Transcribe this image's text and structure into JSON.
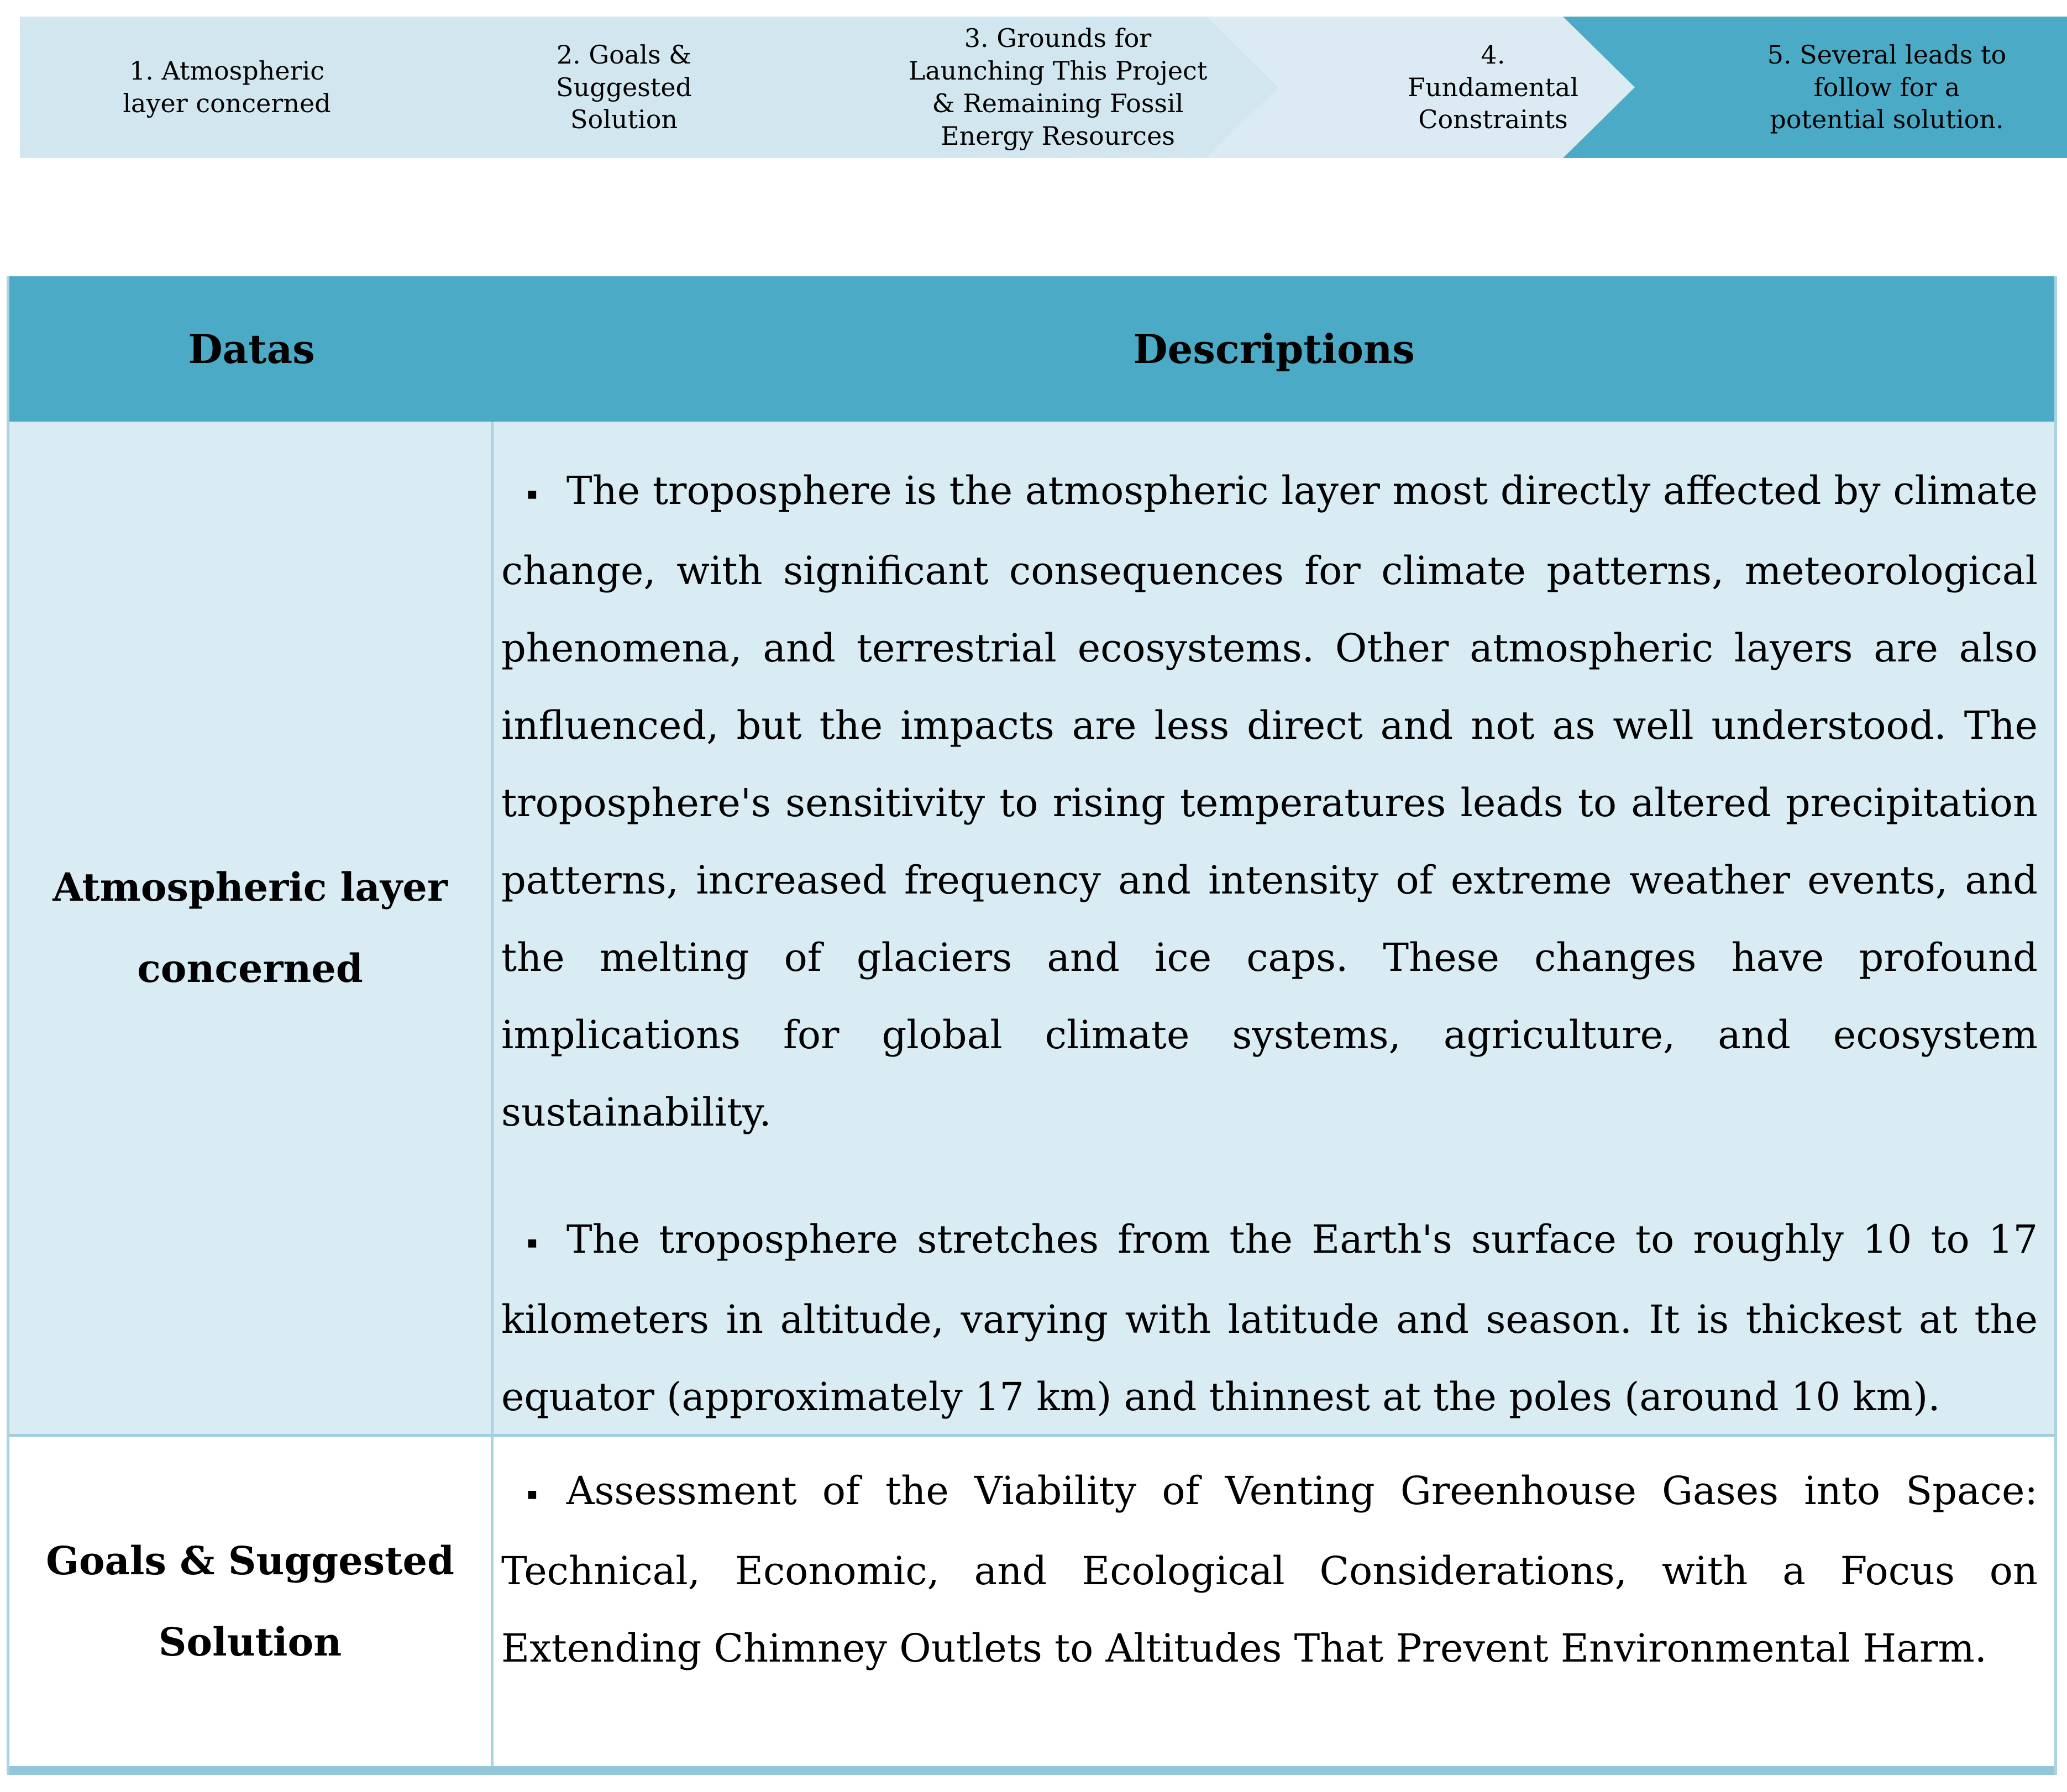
{
  "process_flow": {
    "steps": [
      {
        "label": "1. Atmospheric\nlayer concerned",
        "fill": "#d2e6ef"
      },
      {
        "label": "2. Goals &\nSuggested\nSolution",
        "fill": "#d2e6ef"
      },
      {
        "label": "3. Grounds for\nLaunching This Project\n& Remaining Fossil\nEnergy Resources",
        "fill": "#d2e6ef"
      },
      {
        "label": "4.\nFundamental\nConstraints",
        "fill": "#dcebf3"
      },
      {
        "label": "5. Several leads to\nfollow for a\npotential solution.",
        "fill": "#4babc6"
      }
    ]
  },
  "table": {
    "bullet": "▪",
    "headers": [
      "Datas",
      "Descriptions"
    ],
    "rows": [
      {
        "data_label": "Atmospheric layer concerned",
        "descriptions": [
          "The troposphere is the atmospheric layer most directly affected by climate change, with significant consequences for climate patterns, meteorological phenomena, and terrestrial ecosystems. Other atmospheric layers are also influenced, but the impacts are less direct and not as well understood. The troposphere's sensitivity to rising temperatures leads to altered precipitation patterns, increased frequency and intensity of extreme weather events, and the melting of glaciers and ice caps. These changes have profound implications for global climate systems, agriculture, and ecosystem sustainability.",
          "The troposphere stretches from the Earth's surface to roughly 10 to 17 kilometers in altitude, varying with latitude and season. It is thickest at the equator (approximately 17 km) and thinnest at the poles (around 10 km)."
        ]
      },
      {
        "data_label": "Goals & Suggested Solution",
        "descriptions": [
          "Assessment of the Viability of Venting Greenhouse Gases into Space: Technical, Economic, and Ecological Considerations, with a Focus on Extending Chimney Outlets to Altitudes That Prevent Environmental Harm."
        ]
      }
    ]
  },
  "colors": {
    "header_bg": "#4babc6",
    "row1_bg": "#d9ebf3",
    "row2_bg": "#ffffff",
    "border_thin": "#a9d3e0",
    "border_thick": "#93c7d8",
    "chevron_light": "#d2e6ef",
    "chevron_lighter": "#dcebf3",
    "chevron_accent": "#4babc6",
    "text": "#000000"
  }
}
